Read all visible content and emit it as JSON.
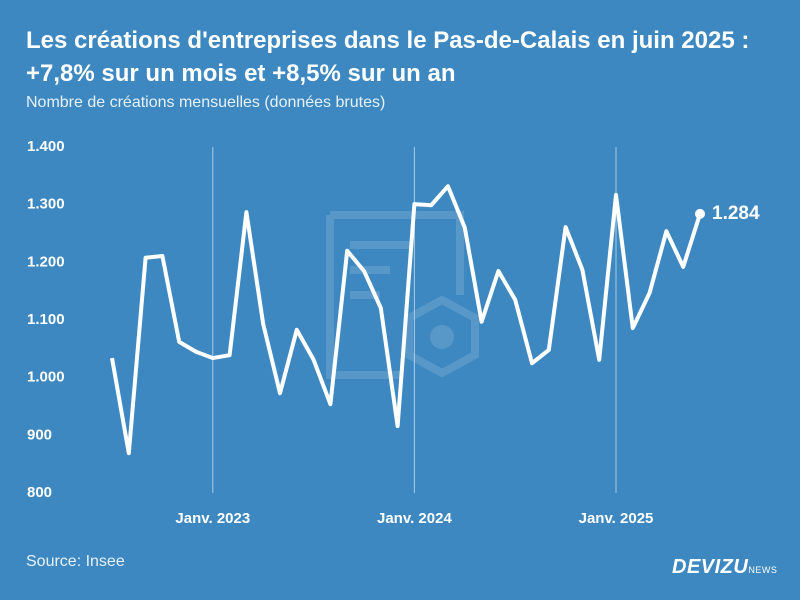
{
  "chart_data": {
    "type": "line",
    "title": "Les créations d'entreprises dans le Pas-de-Calais en juin 2025 : +7,8% sur un mois et +8,5% sur un an",
    "subtitle": "Nombre de créations mensuelles (données brutes)",
    "source": "Source: Insee",
    "brand": "DEVIZU",
    "brand_suffix": "NEWS",
    "categories": [
      null,
      null,
      null,
      null,
      null,
      null,
      "Janv. 2023",
      null,
      null,
      null,
      null,
      null,
      null,
      null,
      null,
      null,
      null,
      null,
      "Janv. 2024",
      null,
      null,
      null,
      null,
      null,
      null,
      null,
      null,
      null,
      null,
      null,
      "Janv. 2025",
      null,
      null,
      null,
      null,
      null
    ],
    "series": [
      {
        "name": "Créations",
        "color": "#ffffff",
        "values": [
          1034,
          869,
          1208,
          1211,
          1062,
          1045,
          1034,
          1039,
          1287,
          1093,
          973,
          1083,
          1031,
          954,
          1220,
          1185,
          1121,
          916,
          1301,
          1299,
          1332,
          1260,
          1097,
          1185,
          1135,
          1025,
          1048,
          1261,
          1187,
          1031,
          1317,
          1086,
          1147,
          1254,
          1192,
          1284
        ],
        "value_labels": [
          null,
          null,
          null,
          null,
          null,
          null,
          null,
          null,
          null,
          null,
          null,
          null,
          null,
          null,
          null,
          null,
          null,
          null,
          null,
          null,
          null,
          null,
          null,
          null,
          null,
          null,
          null,
          null,
          null,
          null,
          null,
          null,
          null,
          null,
          null,
          "1.284"
        ]
      }
    ],
    "ylim": [
      800,
      1400
    ],
    "yticks": [
      800,
      900,
      {
        "value": 1000,
        "label": "1.000"
      },
      {
        "value": 1100,
        "label": "1.100"
      },
      {
        "value": 1200,
        "label": "1.200"
      },
      {
        "value": 1300,
        "label": "1.300"
      },
      {
        "value": 1400,
        "label": "1.400"
      }
    ],
    "grid": "x"
  }
}
